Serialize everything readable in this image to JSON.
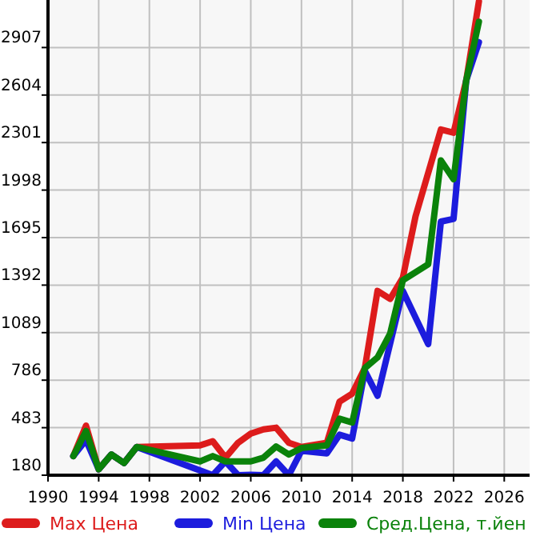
{
  "chart_data": {
    "type": "line",
    "x": [
      1992,
      1993,
      1994,
      1995,
      1996,
      1997,
      2002,
      2003,
      2004,
      2005,
      2006,
      2007,
      2008,
      2009,
      2010,
      2012,
      2013,
      2014,
      2015,
      2016,
      2017,
      2018,
      2019,
      2020,
      2021,
      2022,
      2023,
      2024
    ],
    "series": [
      {
        "name": "Max Цена",
        "color": "#dd1c1c",
        "values": [
          302,
          496,
          218,
          312,
          258,
          360,
          370,
          397,
          292,
          387,
          445,
          472,
          483,
          387,
          360,
          387,
          649,
          700,
          863,
          1355,
          1304,
          1440,
          1831,
          null,
          2384,
          2364,
          2697,
          3200
        ]
      },
      {
        "name": "Min Цена",
        "color": "#1c1cdd",
        "values": [
          302,
          404,
          218,
          312,
          258,
          360,
          null,
          180,
          268,
          180,
          183,
          180,
          268,
          180,
          336,
          319,
          438,
          414,
          846,
          686,
          null,
          1355,
          null,
          1016,
          1797,
          1814,
          2697,
          2941
        ]
      },
      {
        "name": "Сред.Цена, т.йен",
        "color": "#0a820a",
        "values": [
          302,
          462,
          218,
          312,
          258,
          360,
          268,
          302,
          268,
          null,
          268,
          292,
          363,
          312,
          353,
          370,
          540,
          516,
          863,
          931,
          1084,
          1423,
          null,
          1525,
          2187,
          2068,
          2697,
          3071
        ]
      }
    ],
    "xlim": [
      1990,
      2028
    ],
    "xticks": [
      1990,
      1994,
      1998,
      2002,
      2006,
      2010,
      2014,
      2018,
      2022,
      2026
    ],
    "ylim": [
      180,
      3210
    ],
    "yticks": [
      180,
      483,
      786,
      1089,
      1392,
      1695,
      1998,
      2301,
      2604,
      2907
    ],
    "grid": true,
    "legend": "bottom"
  }
}
